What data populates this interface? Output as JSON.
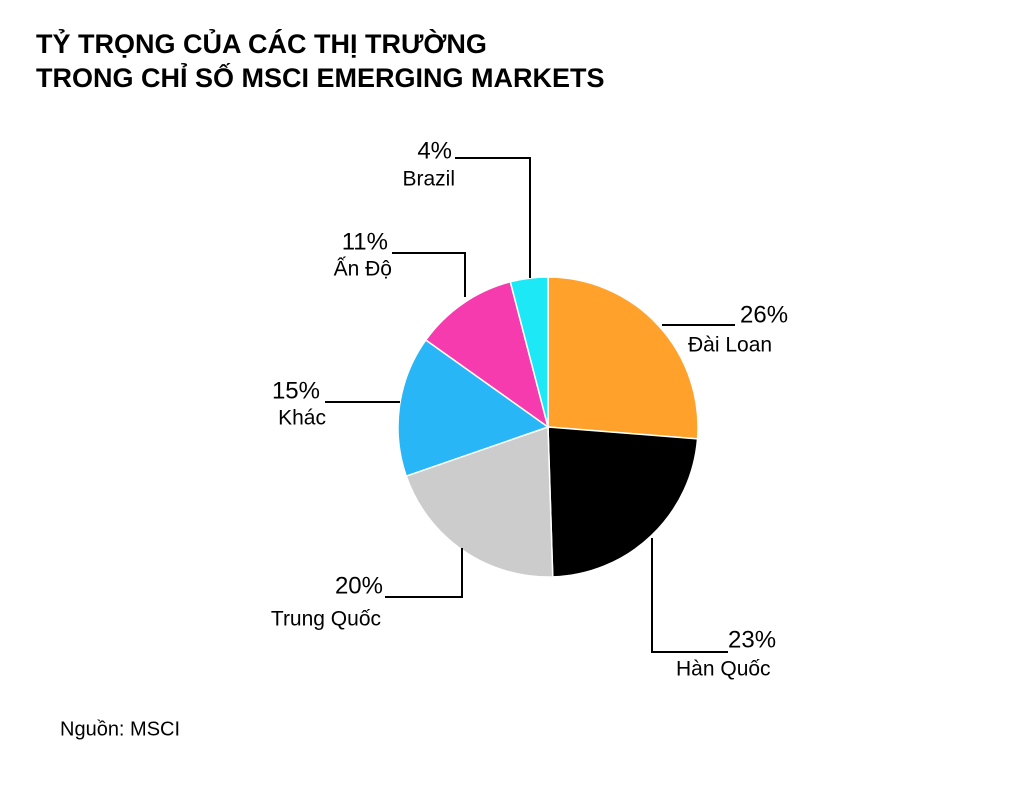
{
  "chart_data": {
    "type": "pie",
    "title": [
      "TỶ TRỌNG CỦA CÁC THỊ TRƯỜNG",
      "TRONG CHỈ SỐ MSCI EMERGING MARKETS"
    ],
    "categories": [
      "Đài Loan",
      "Hàn Quốc",
      "Trung Quốc",
      "Khác",
      "Ấn Độ",
      "Brazil"
    ],
    "values": [
      26,
      23,
      20,
      15,
      11,
      4
    ],
    "value_labels": [
      "26%",
      "23%",
      "20%",
      "15%",
      "11%",
      "4%"
    ],
    "colors": [
      "#ffa12b",
      "#000000",
      "#cccccc",
      "#29b6f6",
      "#f63baf",
      "#1de9f6"
    ],
    "source": "Nguồn: MSCI"
  }
}
